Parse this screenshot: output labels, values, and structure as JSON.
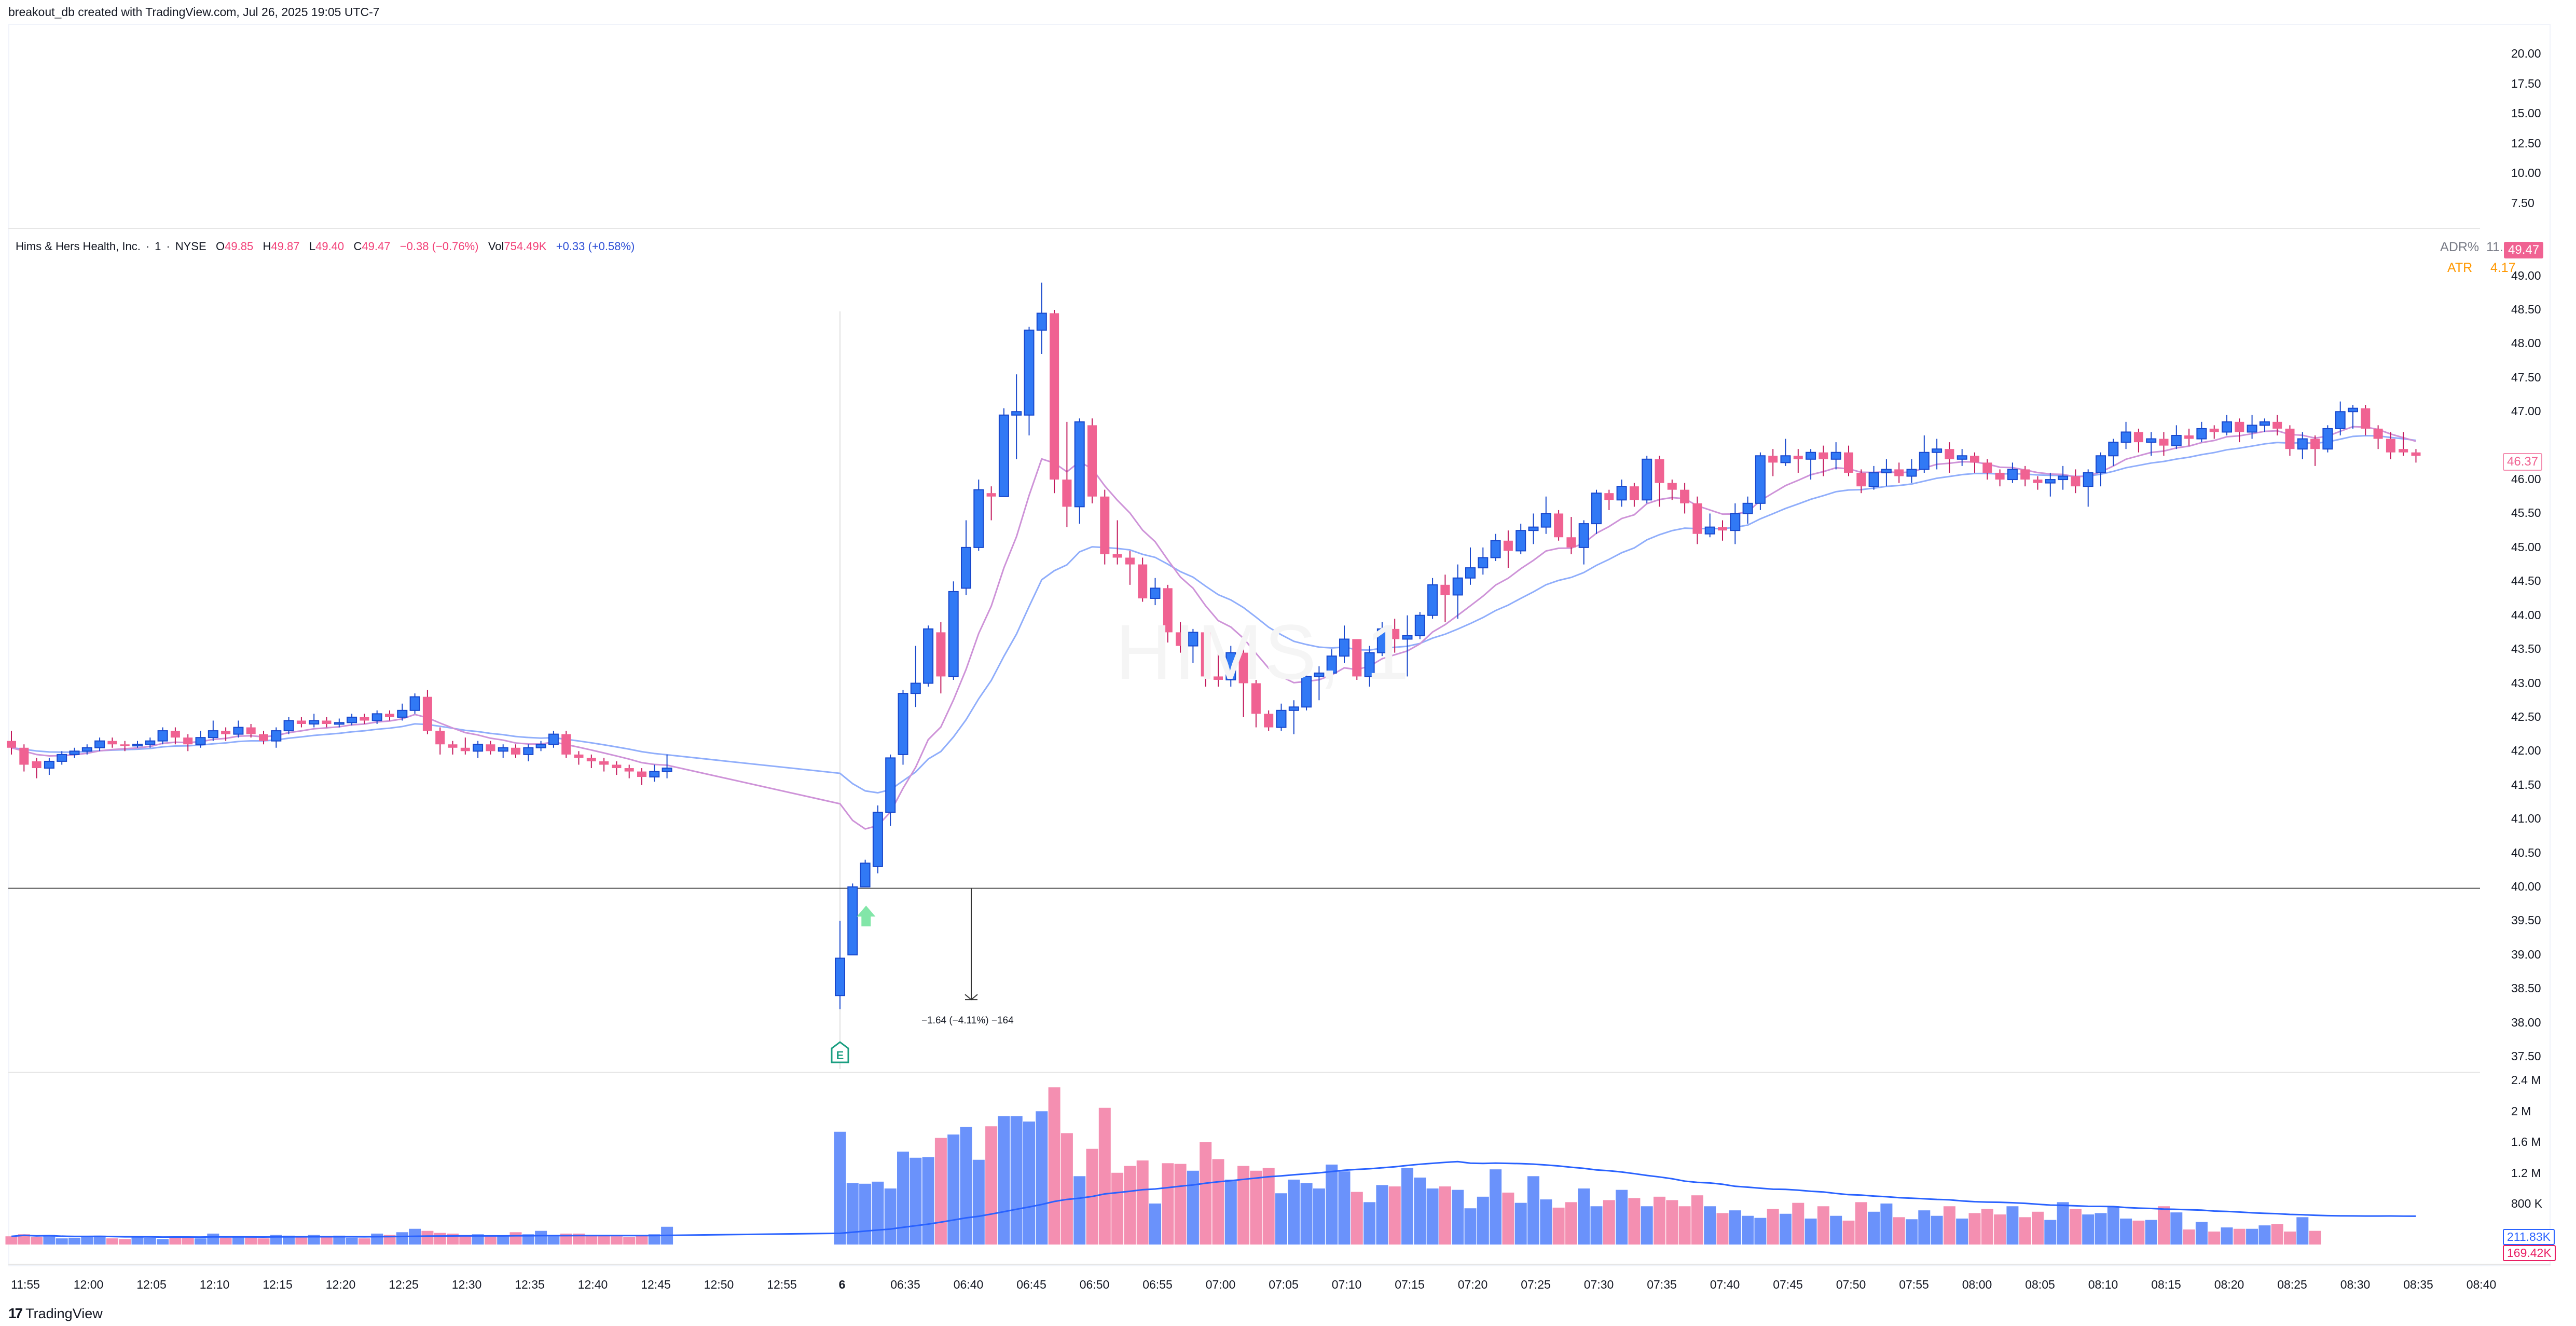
{
  "caption": "breakout_db created with TradingView.com, Jul 26, 2025 19:05 UTC-7",
  "legend": {
    "symbol_name": "Hims & Hers Health, Inc.",
    "interval": "1",
    "exchange": "NYSE",
    "open_label": "O",
    "open": "49.85",
    "high_label": "H",
    "high": "49.87",
    "low_label": "L",
    "low": "49.40",
    "close_label": "C",
    "close": "49.47",
    "change": "−0.38 (−0.76%)",
    "vol_label": "Vol",
    "volume": "754.49K",
    "vol_change": "+0.33 (+0.58%)"
  },
  "indicators": {
    "adr_label": "ADR%",
    "adr_value": "11.09%",
    "atr_label": "ATR",
    "atr_value": "4.17"
  },
  "badges": {
    "current_price": "49.47",
    "last_price": "46.37",
    "volume_ma": "211.83K",
    "volume_last": "169.42K"
  },
  "watermark": "HIMS, 1",
  "measure": {
    "label": "−1.64 (−4.11%) −164"
  },
  "earnings_marker": {
    "label": "E"
  },
  "footer": {
    "logo_text": "TradingView",
    "logo_mark": "17"
  },
  "colors": {
    "up": "#3179f5",
    "up_border": "#1848cc",
    "down": "#f06292",
    "down_wick": "#c2185b",
    "vol_up": "#6a92fb",
    "vol_down": "#f48fb1",
    "ema_fast": "#ce93d8",
    "ema_slow": "#90aefb",
    "vol_ma": "#2962ff",
    "earnings": "#1a9e80",
    "signal_arrow": "#82e6a8"
  },
  "chart_data": {
    "type": "candlestick",
    "title": "Hims & Hers Health, Inc. · 1 · NYSE",
    "xlabel": "",
    "ylabel": "Price (USD)",
    "upper_pane_axis": [
      "20.00",
      "17.50",
      "15.00",
      "12.50",
      "10.00",
      "7.50"
    ],
    "price_axis": [
      "49.00",
      "48.50",
      "48.00",
      "47.50",
      "47.00",
      "46.50",
      "46.00",
      "45.50",
      "45.00",
      "44.50",
      "44.00",
      "43.50",
      "43.00",
      "42.50",
      "42.00",
      "41.50",
      "41.00",
      "40.50",
      "40.00",
      "39.50",
      "39.00",
      "38.50",
      "38.00",
      "37.50"
    ],
    "ylim": [
      37.3,
      49.3
    ],
    "volume_axis": [
      "2.4 M",
      "2 M",
      "1.6 M",
      "1.2 M",
      "800 K"
    ],
    "time_axis": [
      "11:55",
      "12:00",
      "12:05",
      "12:10",
      "12:15",
      "12:20",
      "12:25",
      "12:30",
      "12:35",
      "12:40",
      "12:45",
      "12:50",
      "12:55",
      "6",
      "06:35",
      "06:40",
      "06:45",
      "06:50",
      "06:55",
      "07:00",
      "07:05",
      "07:10",
      "07:15",
      "07:20",
      "07:25",
      "07:30",
      "07:35",
      "07:40",
      "07:45",
      "07:50",
      "07:55",
      "08:00",
      "08:05",
      "08:10",
      "08:15",
      "08:20",
      "08:25",
      "08:30",
      "08:35",
      "08:40"
    ],
    "horizontal_line": 39.98,
    "measure": {
      "from": 39.98,
      "to": 38.34,
      "text": "−1.64 (−4.11%) −164"
    },
    "candles": [
      [
        42.15,
        42.05,
        42.3,
        41.95
      ],
      [
        42.05,
        41.8,
        42.1,
        41.7
      ],
      [
        41.85,
        41.75,
        41.9,
        41.6
      ],
      [
        41.75,
        41.85,
        41.9,
        41.65
      ],
      [
        41.85,
        41.95,
        42.0,
        41.8
      ],
      [
        41.95,
        42.0,
        42.05,
        41.9
      ],
      [
        42.0,
        42.05,
        42.1,
        41.95
      ],
      [
        42.05,
        42.15,
        42.2,
        42.0
      ],
      [
        42.15,
        42.1,
        42.2,
        42.05
      ],
      [
        42.1,
        42.08,
        42.15,
        42.0
      ],
      [
        42.08,
        42.1,
        42.15,
        42.05
      ],
      [
        42.1,
        42.15,
        42.2,
        42.05
      ],
      [
        42.15,
        42.3,
        42.35,
        42.1
      ],
      [
        42.3,
        42.2,
        42.35,
        42.1
      ],
      [
        42.2,
        42.1,
        42.25,
        42.0
      ],
      [
        42.1,
        42.2,
        42.3,
        42.05
      ],
      [
        42.2,
        42.3,
        42.45,
        42.15
      ],
      [
        42.3,
        42.25,
        42.35,
        42.15
      ],
      [
        42.25,
        42.35,
        42.45,
        42.2
      ],
      [
        42.35,
        42.25,
        42.4,
        42.2
      ],
      [
        42.25,
        42.15,
        42.3,
        42.1
      ],
      [
        42.15,
        42.3,
        42.35,
        42.05
      ],
      [
        42.3,
        42.45,
        42.5,
        42.25
      ],
      [
        42.45,
        42.4,
        42.5,
        42.35
      ],
      [
        42.4,
        42.45,
        42.55,
        42.35
      ],
      [
        42.45,
        42.4,
        42.5,
        42.35
      ],
      [
        42.4,
        42.42,
        42.48,
        42.35
      ],
      [
        42.42,
        42.5,
        42.55,
        42.38
      ],
      [
        42.5,
        42.45,
        42.55,
        42.4
      ],
      [
        42.45,
        42.55,
        42.6,
        42.4
      ],
      [
        42.55,
        42.5,
        42.6,
        42.45
      ],
      [
        42.5,
        42.6,
        42.7,
        42.45
      ],
      [
        42.6,
        42.8,
        42.85,
        42.55
      ],
      [
        42.8,
        42.3,
        42.9,
        42.25
      ],
      [
        42.3,
        42.1,
        42.35,
        41.95
      ],
      [
        42.1,
        42.05,
        42.15,
        41.95
      ],
      [
        42.05,
        42.0,
        42.2,
        41.95
      ],
      [
        42.0,
        42.1,
        42.15,
        41.9
      ],
      [
        42.1,
        42.0,
        42.15,
        41.95
      ],
      [
        42.0,
        42.05,
        42.1,
        41.9
      ],
      [
        42.05,
        41.95,
        42.1,
        41.9
      ],
      [
        41.95,
        42.05,
        42.1,
        41.85
      ],
      [
        42.05,
        42.1,
        42.15,
        42.0
      ],
      [
        42.1,
        42.25,
        42.3,
        42.05
      ],
      [
        42.25,
        41.95,
        42.3,
        41.9
      ],
      [
        41.95,
        41.9,
        42.0,
        41.8
      ],
      [
        41.9,
        41.85,
        41.95,
        41.75
      ],
      [
        41.85,
        41.8,
        41.9,
        41.7
      ],
      [
        41.8,
        41.75,
        41.85,
        41.65
      ],
      [
        41.75,
        41.7,
        41.8,
        41.6
      ],
      [
        41.7,
        41.62,
        41.75,
        41.5
      ],
      [
        41.62,
        41.7,
        41.8,
        41.55
      ],
      [
        41.7,
        41.75,
        41.95,
        41.6
      ],
      [
        38.4,
        38.95,
        39.5,
        38.2
      ],
      [
        39.0,
        40.0,
        40.05,
        39.0
      ],
      [
        40.0,
        40.35,
        40.4,
        40.0
      ],
      [
        40.3,
        41.1,
        41.2,
        40.2
      ],
      [
        41.1,
        41.9,
        41.95,
        40.9
      ],
      [
        41.95,
        42.85,
        42.9,
        41.8
      ],
      [
        42.85,
        43.0,
        43.55,
        42.65
      ],
      [
        43.0,
        43.8,
        43.85,
        42.95
      ],
      [
        43.75,
        43.1,
        43.9,
        42.85
      ],
      [
        43.1,
        44.35,
        44.5,
        43.05
      ],
      [
        44.4,
        45.0,
        45.4,
        44.3
      ],
      [
        45.0,
        45.85,
        46.0,
        44.95
      ],
      [
        45.8,
        45.75,
        45.9,
        45.4
      ],
      [
        45.75,
        46.95,
        47.05,
        45.75
      ],
      [
        46.95,
        47.0,
        47.55,
        46.3
      ],
      [
        46.95,
        48.2,
        48.25,
        46.65
      ],
      [
        48.2,
        48.45,
        48.9,
        47.85
      ],
      [
        48.45,
        46.0,
        48.5,
        45.8
      ],
      [
        46.0,
        45.6,
        46.85,
        45.3
      ],
      [
        45.6,
        46.85,
        46.9,
        45.35
      ],
      [
        46.8,
        45.75,
        46.9,
        45.65
      ],
      [
        45.75,
        44.9,
        45.85,
        44.75
      ],
      [
        44.9,
        44.85,
        45.4,
        44.75
      ],
      [
        44.85,
        44.75,
        44.95,
        44.45
      ],
      [
        44.75,
        44.25,
        44.85,
        44.2
      ],
      [
        44.25,
        44.4,
        44.55,
        44.15
      ],
      [
        44.4,
        43.75,
        44.45,
        43.6
      ],
      [
        43.75,
        43.55,
        43.9,
        43.45
      ],
      [
        43.55,
        43.75,
        43.8,
        43.3
      ],
      [
        43.75,
        43.1,
        43.8,
        42.95
      ],
      [
        43.1,
        43.05,
        43.5,
        42.95
      ],
      [
        43.05,
        43.45,
        43.55,
        42.95
      ],
      [
        43.45,
        43.0,
        43.55,
        42.5
      ],
      [
        43.0,
        42.55,
        43.05,
        42.35
      ],
      [
        42.55,
        42.35,
        42.6,
        42.3
      ],
      [
        42.35,
        42.6,
        42.7,
        42.3
      ],
      [
        42.6,
        42.65,
        42.75,
        42.25
      ],
      [
        42.65,
        43.1,
        43.12,
        42.6
      ],
      [
        43.1,
        43.15,
        43.25,
        42.75
      ],
      [
        43.15,
        43.4,
        43.5,
        43.0
      ],
      [
        43.4,
        43.65,
        43.85,
        43.3
      ],
      [
        43.65,
        43.1,
        43.65,
        43.05
      ],
      [
        43.1,
        43.45,
        43.55,
        42.95
      ],
      [
        43.45,
        43.8,
        43.9,
        43.4
      ],
      [
        43.8,
        43.65,
        43.95,
        43.45
      ],
      [
        43.65,
        43.7,
        44.0,
        43.1
      ],
      [
        43.7,
        44.0,
        44.05,
        43.65
      ],
      [
        44.0,
        44.45,
        44.55,
        43.95
      ],
      [
        44.45,
        44.3,
        44.6,
        43.9
      ],
      [
        44.3,
        44.55,
        44.75,
        43.95
      ],
      [
        44.55,
        44.7,
        45.0,
        44.45
      ],
      [
        44.7,
        44.85,
        45.0,
        44.6
      ],
      [
        44.85,
        45.1,
        45.2,
        44.8
      ],
      [
        45.1,
        44.95,
        45.25,
        44.7
      ],
      [
        44.95,
        45.25,
        45.35,
        44.9
      ],
      [
        45.25,
        45.3,
        45.5,
        45.05
      ],
      [
        45.3,
        45.5,
        45.75,
        45.2
      ],
      [
        45.5,
        45.15,
        45.55,
        45.1
      ],
      [
        45.15,
        45.0,
        45.45,
        44.9
      ],
      [
        45.0,
        45.35,
        45.4,
        44.75
      ],
      [
        45.35,
        45.8,
        45.85,
        45.2
      ],
      [
        45.8,
        45.7,
        45.85,
        45.55
      ],
      [
        45.7,
        45.9,
        46.0,
        45.6
      ],
      [
        45.9,
        45.7,
        45.95,
        45.6
      ],
      [
        45.7,
        46.3,
        46.35,
        45.65
      ],
      [
        46.3,
        45.95,
        46.35,
        45.6
      ],
      [
        45.95,
        45.85,
        46.0,
        45.7
      ],
      [
        45.85,
        45.65,
        45.95,
        45.5
      ],
      [
        45.65,
        45.2,
        45.75,
        45.05
      ],
      [
        45.2,
        45.3,
        45.5,
        45.15
      ],
      [
        45.3,
        45.25,
        45.4,
        45.1
      ],
      [
        45.25,
        45.5,
        45.65,
        45.05
      ],
      [
        45.5,
        45.65,
        45.75,
        45.35
      ],
      [
        45.65,
        46.35,
        46.4,
        45.55
      ],
      [
        46.35,
        46.25,
        46.45,
        46.05
      ],
      [
        46.25,
        46.35,
        46.6,
        46.2
      ],
      [
        46.35,
        46.3,
        46.45,
        46.1
      ],
      [
        46.3,
        46.4,
        46.45,
        46.0
      ],
      [
        46.4,
        46.3,
        46.5,
        46.05
      ],
      [
        46.3,
        46.4,
        46.55,
        46.15
      ],
      [
        46.4,
        46.1,
        46.5,
        46.05
      ],
      [
        46.1,
        45.9,
        46.15,
        45.8
      ],
      [
        45.9,
        46.1,
        46.2,
        45.85
      ],
      [
        46.1,
        46.15,
        46.3,
        45.9
      ],
      [
        46.15,
        46.05,
        46.25,
        45.95
      ],
      [
        46.05,
        46.15,
        46.3,
        45.95
      ],
      [
        46.15,
        46.4,
        46.65,
        46.1
      ],
      [
        46.4,
        46.45,
        46.6,
        46.15
      ],
      [
        46.45,
        46.3,
        46.55,
        46.1
      ],
      [
        46.3,
        46.35,
        46.45,
        46.2
      ],
      [
        46.35,
        46.25,
        46.4,
        46.1
      ],
      [
        46.25,
        46.1,
        46.3,
        46.0
      ],
      [
        46.1,
        46.0,
        46.15,
        45.9
      ],
      [
        46.0,
        46.15,
        46.25,
        45.95
      ],
      [
        46.15,
        46.0,
        46.2,
        45.9
      ],
      [
        46.0,
        45.95,
        46.05,
        45.85
      ],
      [
        45.95,
        46.0,
        46.1,
        45.75
      ],
      [
        46.0,
        46.05,
        46.2,
        45.85
      ],
      [
        46.05,
        45.9,
        46.15,
        45.8
      ],
      [
        45.9,
        46.1,
        46.15,
        45.6
      ],
      [
        46.1,
        46.35,
        46.4,
        45.9
      ],
      [
        46.35,
        46.55,
        46.6,
        46.2
      ],
      [
        46.55,
        46.7,
        46.85,
        46.45
      ],
      [
        46.7,
        46.55,
        46.75,
        46.4
      ],
      [
        46.55,
        46.6,
        46.7,
        46.35
      ],
      [
        46.6,
        46.5,
        46.7,
        46.35
      ],
      [
        46.5,
        46.65,
        46.8,
        46.45
      ],
      [
        46.65,
        46.6,
        46.75,
        46.5
      ],
      [
        46.6,
        46.75,
        46.85,
        46.55
      ],
      [
        46.75,
        46.7,
        46.8,
        46.6
      ],
      [
        46.7,
        46.85,
        46.95,
        46.65
      ],
      [
        46.85,
        46.7,
        46.9,
        46.55
      ],
      [
        46.7,
        46.8,
        46.95,
        46.6
      ],
      [
        46.8,
        46.85,
        46.9,
        46.7
      ],
      [
        46.85,
        46.75,
        46.95,
        46.65
      ],
      [
        46.75,
        46.45,
        46.8,
        46.35
      ],
      [
        46.45,
        46.6,
        46.7,
        46.3
      ],
      [
        46.6,
        46.45,
        46.65,
        46.2
      ],
      [
        46.45,
        46.75,
        46.8,
        46.4
      ],
      [
        46.75,
        47.0,
        47.15,
        46.65
      ],
      [
        47.0,
        47.05,
        47.1,
        46.75
      ],
      [
        47.05,
        46.75,
        47.1,
        46.65
      ],
      [
        46.75,
        46.6,
        46.8,
        46.45
      ],
      [
        46.6,
        46.4,
        46.7,
        46.3
      ],
      [
        46.45,
        46.4,
        46.7,
        46.35
      ],
      [
        46.4,
        46.35,
        46.45,
        46.25
      ]
    ],
    "volume_k": [
      120,
      150,
      110,
      140,
      90,
      100,
      120,
      130,
      90,
      80,
      110,
      100,
      80,
      120,
      110,
      90,
      160,
      100,
      120,
      110,
      90,
      140,
      130,
      120,
      140,
      110,
      130,
      100,
      90,
      160,
      140,
      180,
      230,
      200,
      170,
      160,
      140,
      150,
      130,
      120,
      180,
      150,
      200,
      120,
      160,
      160,
      140,
      130,
      120,
      110,
      140,
      150,
      260,
      1650,
      900,
      890,
      920,
      820,
      1360,
      1270,
      1280,
      1560,
      1610,
      1720,
      1240,
      1730,
      1880,
      1880,
      1800,
      1950,
      2300,
      1630,
      1000,
      1400,
      2000,
      1050,
      1150,
      1230,
      600,
      1190,
      1180,
      1080,
      1500,
      1250,
      950,
      1150,
      1080,
      1120,
      750,
      950,
      900,
      820,
      1170,
      1070,
      770,
      620,
      870,
      850,
      1120,
      980,
      820,
      850,
      800,
      530,
      700,
      1100,
      760,
      610,
      1000,
      660,
      540,
      620,
      820,
      560,
      650,
      800,
      680,
      560,
      700,
      650,
      560,
      720,
      560,
      460,
      500,
      420,
      390,
      520,
      450,
      610,
      380,
      560,
      420,
      350,
      620,
      480,
      600,
      400,
      370,
      500,
      420,
      560,
      380,
      460,
      520,
      440,
      560,
      400,
      480,
      360,
      620,
      520,
      440,
      460,
      560,
      380,
      350,
      360,
      560,
      470,
      220,
      330,
      190,
      250,
      230,
      230,
      280,
      300,
      190,
      400,
      200
    ],
    "ema_fast_color": "#ce93d8",
    "ema_slow_color": "#90aefb"
  }
}
